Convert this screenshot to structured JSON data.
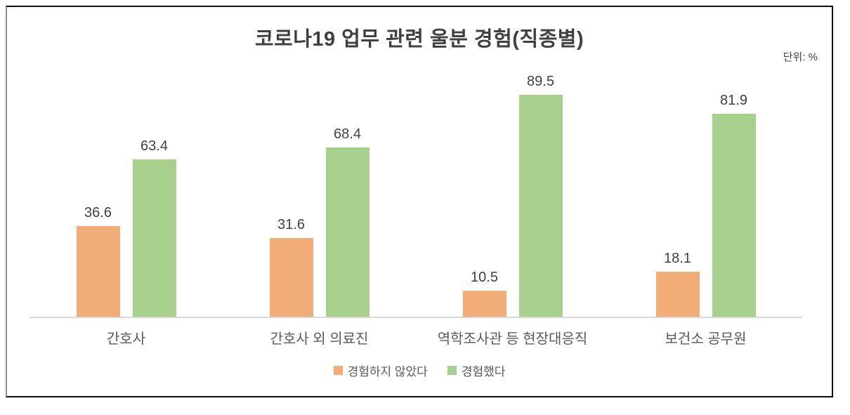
{
  "chart": {
    "title": "코로나19 업무 관련 울분 경험(직종별)",
    "unit_label": "단위: %"
  },
  "chart_data": {
    "type": "bar",
    "title": "코로나19 업무 관련 울분 경험(직종별)",
    "categories": [
      "간호사",
      "간호사 외 의료진",
      "역학조사관 등 현장대응직",
      "보건소 공무원"
    ],
    "series": [
      {
        "name": "경험하지 않았다",
        "color": "#F2AC78",
        "values": [
          36.6,
          31.6,
          10.5,
          18.1
        ]
      },
      {
        "name": "경험했다",
        "color": "#A8D08D",
        "values": [
          63.4,
          68.4,
          89.5,
          81.9
        ]
      }
    ],
    "xlabel": "",
    "ylabel": "",
    "ylim": [
      0,
      100
    ],
    "unit": "%",
    "grid": false,
    "value_labels": true,
    "legend_position": "bottom",
    "value_label_color": "#404040",
    "category_label_color": "#595959",
    "axis_line_color": "#D9D9D9"
  }
}
